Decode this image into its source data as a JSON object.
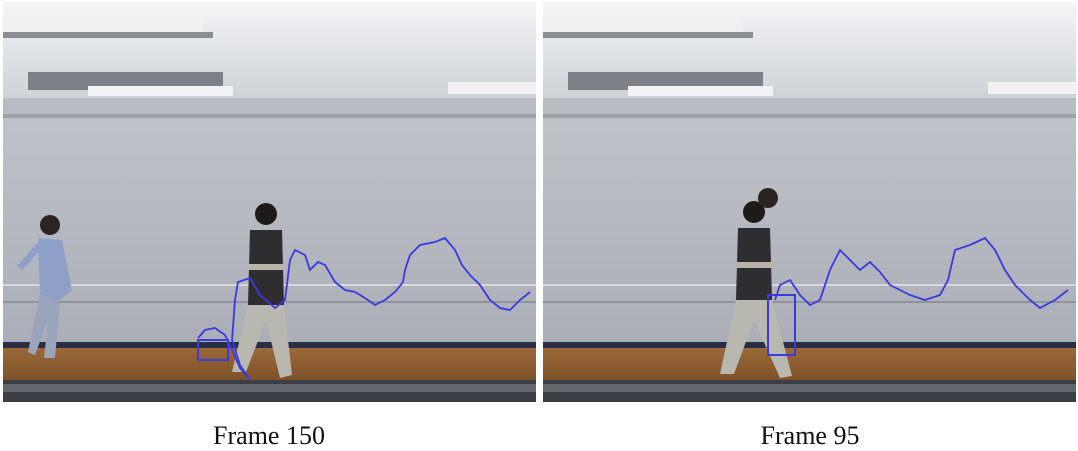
{
  "panels": [
    {
      "caption": "Frame 150"
    },
    {
      "caption": "Frame 95"
    }
  ]
}
